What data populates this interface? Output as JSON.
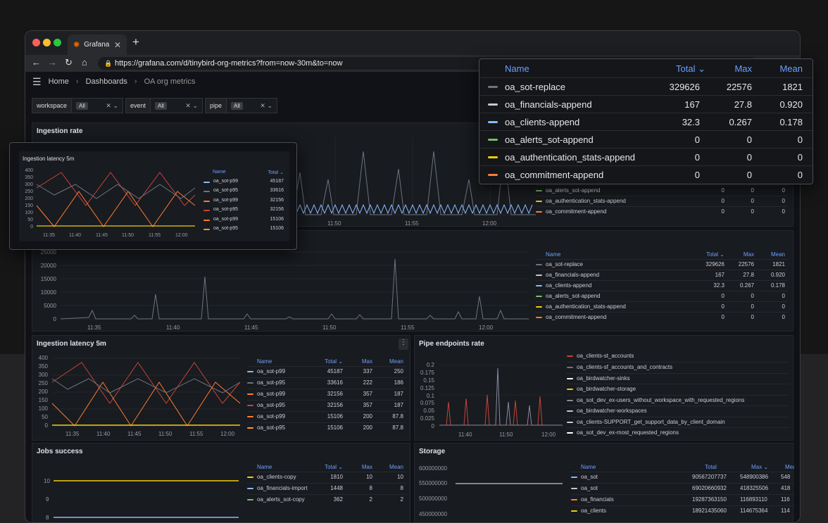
{
  "browser": {
    "tab_title": "Grafana",
    "url": "https://grafana.com/d/tinybird-org-metrics?from=now-30m&to=now"
  },
  "breadcrumb": {
    "home": "Home",
    "dashboards": "Dashboards",
    "current": "OA org metrics"
  },
  "filters": [
    {
      "key": "workspace",
      "value": "All"
    },
    {
      "key": "event",
      "value": "All"
    },
    {
      "key": "pipe",
      "value": "All"
    }
  ],
  "columns": {
    "name": "Name",
    "total": "Total",
    "max": "Max",
    "mean": "Mean"
  },
  "colors": {
    "gray": "#6c7480",
    "light": "#c8c8d0",
    "blue": "#8ab8ff",
    "green": "#73bf69",
    "yellow": "#f2cc0c",
    "orange": "#ff7c33",
    "red": "#c4443a"
  },
  "ingestion_rate": {
    "title": "Ingestion rate",
    "x_ticks": [
      "11:50",
      "11:55",
      "12:00"
    ],
    "legend": [
      {
        "name": "oa_alerts_sot-append",
        "total": "0",
        "max": "0",
        "mean": "0",
        "color": "#73bf69"
      },
      {
        "name": "oa_authentication_stats-append",
        "total": "0",
        "max": "0",
        "mean": "0",
        "color": "#f2cc0c"
      },
      {
        "name": "oa_commitment-append",
        "total": "0",
        "max": "0",
        "mean": "0",
        "color": "#ff7c33"
      }
    ]
  },
  "ingestion_rows": {
    "y_ticks": [
      "25000",
      "20000",
      "15000",
      "10000",
      "5000",
      "0"
    ],
    "x_ticks": [
      "11:35",
      "11:40",
      "11:45",
      "11:50",
      "11:55",
      "12:00"
    ],
    "legend": [
      {
        "name": "oa_sot-replace",
        "total": "329626",
        "max": "22576",
        "mean": "1821",
        "color": "#6c7480"
      },
      {
        "name": "oa_financials-append",
        "total": "167",
        "max": "27.8",
        "mean": "0.920",
        "color": "#c8c8d0"
      },
      {
        "name": "oa_clients-append",
        "total": "32.3",
        "max": "0.267",
        "mean": "0.178",
        "color": "#8ab8ff"
      },
      {
        "name": "oa_alerts_sot-append",
        "total": "0",
        "max": "0",
        "mean": "0",
        "color": "#73bf69"
      },
      {
        "name": "oa_authentication_stats-append",
        "total": "0",
        "max": "0",
        "mean": "0",
        "color": "#f2cc0c"
      },
      {
        "name": "oa_commitment-append",
        "total": "0",
        "max": "0",
        "mean": "0",
        "color": "#ff7c33"
      }
    ]
  },
  "latency": {
    "title": "Ingestion latency 5m",
    "y_ticks": [
      "400",
      "350",
      "300",
      "250",
      "200",
      "150",
      "100",
      "50",
      "0"
    ],
    "x_ticks": [
      "11:35",
      "11:40",
      "11:45",
      "11:50",
      "11:55",
      "12:00"
    ],
    "legend": [
      {
        "name": "oa_sot-p99",
        "total": "45187",
        "max": "337",
        "mean": "250",
        "color": "#8ab8ff"
      },
      {
        "name": "oa_sot-p95",
        "total": "33616",
        "max": "222",
        "mean": "186",
        "color": "#6c7480"
      },
      {
        "name": "oa_sot-p99",
        "total": "32156",
        "max": "357",
        "mean": "187",
        "color": "#ff7c33"
      },
      {
        "name": "oa_sot-p95",
        "total": "32156",
        "max": "357",
        "mean": "187",
        "color": "#c4443a"
      },
      {
        "name": "oa_sot-p99",
        "total": "15106",
        "max": "200",
        "mean": "87.8",
        "color": "#ff7c33"
      },
      {
        "name": "oa_sot-p95",
        "total": "15106",
        "max": "200",
        "mean": "87.8",
        "color": "#ff9830"
      }
    ]
  },
  "pipe": {
    "title": "Pipe endpoints rate",
    "y_ticks": [
      "0.2",
      "0.175",
      "0.15",
      "0.125",
      "0.1",
      "0.075",
      "0.05",
      "0.025",
      "0"
    ],
    "x_ticks": [
      "11:40",
      "11:50",
      "12:00"
    ],
    "legend": [
      {
        "name": "oa_clients-st_accounts",
        "color": "#c4443a"
      },
      {
        "name": "oa_clients-sf_accounts_and_contracts",
        "color": "#6c7480"
      },
      {
        "name": "oa_birdwatcher-sinks",
        "color": "#ffffff"
      },
      {
        "name": "oa_birdwatcher-storage",
        "color": "#f2cc0c"
      },
      {
        "name": "oa_sot_dev_ex-users_without_workspace_with_requested_regions",
        "color": "#8a8aa0"
      },
      {
        "name": "oa_birdwatcher-workspaces",
        "color": "#c8c8d0"
      },
      {
        "name": "oa_clients-SUPPORT_get_support_data_by_client_domain",
        "color": "#c8c8d0"
      },
      {
        "name": "oa_sot_dev_ex-most_requested_regions",
        "color": "#ffffff"
      }
    ]
  },
  "jobs": {
    "title": "Jobs success",
    "y_ticks": [
      "10",
      "9",
      "8"
    ],
    "legend": [
      {
        "name": "oa_clients-copy",
        "total": "1810",
        "max": "10",
        "mean": "10",
        "color": "#f2cc0c"
      },
      {
        "name": "oa_financials-import",
        "total": "1448",
        "max": "8",
        "mean": "8",
        "color": "#8ab8ff"
      },
      {
        "name": "oa_alerts_sot-copy",
        "total": "362",
        "max": "2",
        "mean": "2",
        "color": "#73bf69"
      }
    ]
  },
  "storage": {
    "title": "Storage",
    "y_ticks": [
      "600000000",
      "550000000",
      "500000000",
      "450000000"
    ],
    "legend": [
      {
        "name": "oa_sot",
        "total": "90567207737",
        "max": "548900386",
        "mean": "548",
        "color": "#8ab8ff"
      },
      {
        "name": "oa_sot",
        "total": "69020660932",
        "max": "418325506",
        "mean": "418",
        "color": "#c8c8d0"
      },
      {
        "name": "oa_financials",
        "total": "19287363150",
        "max": "116893110",
        "mean": "116",
        "color": "#ff7c33"
      },
      {
        "name": "oa_clients",
        "total": "18921435060",
        "max": "114675364",
        "mean": "114",
        "color": "#f2cc0c"
      }
    ]
  },
  "popup_small": {
    "title": "Ingestion latency 5m",
    "y_ticks": [
      "400",
      "350",
      "300",
      "250",
      "200",
      "150",
      "100",
      "50",
      "0"
    ],
    "x_ticks": [
      "11:35",
      "11:40",
      "11:45",
      "11:50",
      "11:55",
      "12:00"
    ],
    "legend": [
      {
        "name": "oa_sot-p99",
        "total": "45187",
        "color": "#8ab8ff"
      },
      {
        "name": "oa_sot-p95",
        "total": "33616",
        "color": "#6c7480"
      },
      {
        "name": "oa_sot-p99",
        "total": "32156",
        "color": "#ff7c33"
      },
      {
        "name": "oa_sot-p95",
        "total": "32156",
        "color": "#c4443a"
      },
      {
        "name": "oa_sot-p99",
        "total": "15106",
        "color": "#ff7c33"
      },
      {
        "name": "oa_sot-p95",
        "total": "15106",
        "color": "#ff9830"
      }
    ]
  },
  "popup_big": {
    "legend": [
      {
        "name": "oa_sot-replace",
        "total": "329626",
        "max": "22576",
        "mean": "1821",
        "color": "#6c7480"
      },
      {
        "name": "oa_financials-append",
        "total": "167",
        "max": "27.8",
        "mean": "0.920",
        "color": "#c8c8d0"
      },
      {
        "name": "oa_clients-append",
        "total": "32.3",
        "max": "0.267",
        "mean": "0.178",
        "color": "#8ab8ff"
      },
      {
        "name": "oa_alerts_sot-append",
        "total": "0",
        "max": "0",
        "mean": "0",
        "color": "#73bf69"
      },
      {
        "name": "oa_authentication_stats-append",
        "total": "0",
        "max": "0",
        "mean": "0",
        "color": "#f2cc0c"
      },
      {
        "name": "oa_commitment-append",
        "total": "0",
        "max": "0",
        "mean": "0",
        "color": "#ff7c33"
      }
    ]
  }
}
